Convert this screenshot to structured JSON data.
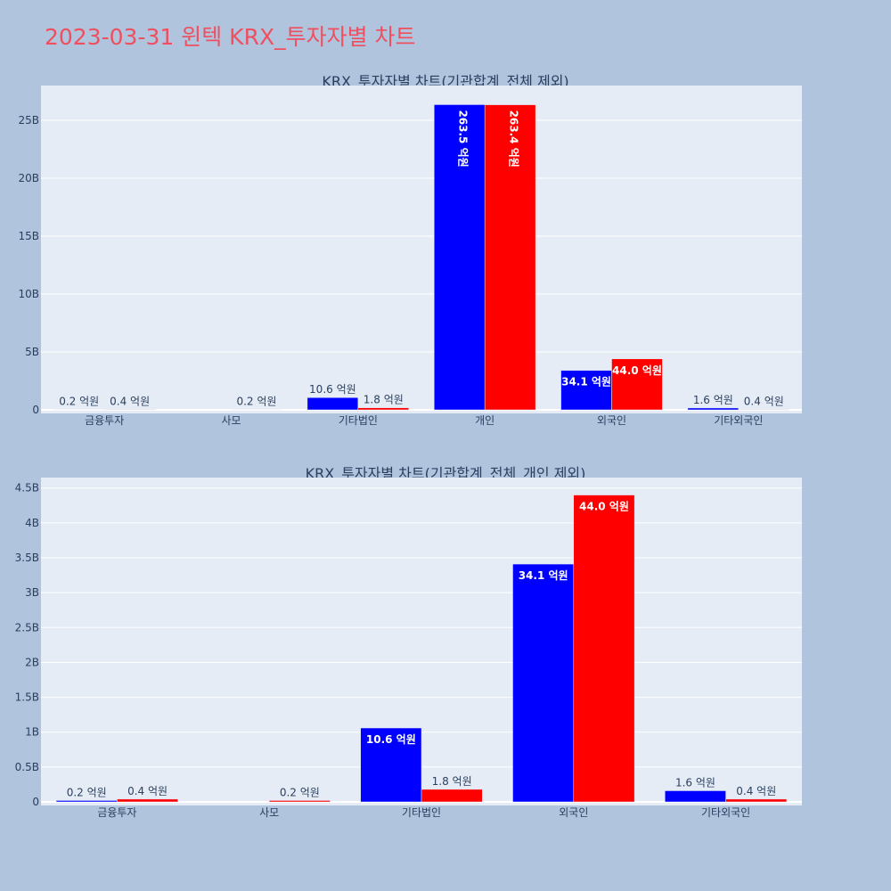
{
  "page_title": "2023-03-31 윈텍 KRX_투자자별 차트",
  "colors": {
    "series_a": "#0000ff",
    "series_b": "#ff0000",
    "plot_bg": "#e5ecf6",
    "page_bg": "#b0c4de",
    "title": "#ef4f5f",
    "axis_text": "#2a3f5f"
  },
  "chart_data": [
    {
      "type": "bar",
      "title": "KRX_투자자별 차트(기관합계_전체 제외)",
      "categories": [
        "금융투자",
        "사모",
        "기타법인",
        "개인",
        "외국인",
        "기타외국인"
      ],
      "ylim": [
        0,
        28
      ],
      "yticks": [
        0,
        5,
        10,
        15,
        20,
        25
      ],
      "ytick_labels": [
        "0",
        "5B",
        "10B",
        "15B",
        "20B",
        "25B"
      ],
      "series": [
        {
          "values": [
            0.02,
            0,
            1.06,
            26.35,
            3.41,
            0.16
          ],
          "labels": [
            "0.2 억원",
            "",
            "10.6 억원",
            "263.5 억원",
            "34.1 억원",
            "1.6 억원"
          ]
        },
        {
          "values": [
            0.04,
            0.02,
            0.18,
            26.34,
            4.4,
            0.04
          ],
          "labels": [
            "0.4 억원",
            "0.2 억원",
            "1.8 억원",
            "263.4 억원",
            "44.0 억원",
            "0.4 억원"
          ]
        }
      ],
      "grid": true
    },
    {
      "type": "bar",
      "title": "KRX_투자자별 차트(기관합계_전체_개인 제외)",
      "categories": [
        "금융투자",
        "사모",
        "기타법인",
        "외국인",
        "기타외국인"
      ],
      "ylim": [
        0,
        4.65
      ],
      "yticks": [
        0,
        0.5,
        1,
        1.5,
        2,
        2.5,
        3,
        3.5,
        4,
        4.5
      ],
      "ytick_labels": [
        "0",
        "0.5B",
        "1B",
        "1.5B",
        "2B",
        "2.5B",
        "3B",
        "3.5B",
        "4B",
        "4.5B"
      ],
      "series": [
        {
          "values": [
            0.02,
            0,
            1.06,
            3.41,
            0.16
          ],
          "labels": [
            "0.2 억원",
            "",
            "10.6 억원",
            "34.1 억원",
            "1.6 억원"
          ]
        },
        {
          "values": [
            0.04,
            0.02,
            0.18,
            4.4,
            0.04
          ],
          "labels": [
            "0.4 억원",
            "0.2 억원",
            "1.8 억원",
            "44.0 억원",
            "0.4 억원"
          ]
        }
      ],
      "grid": true
    }
  ]
}
